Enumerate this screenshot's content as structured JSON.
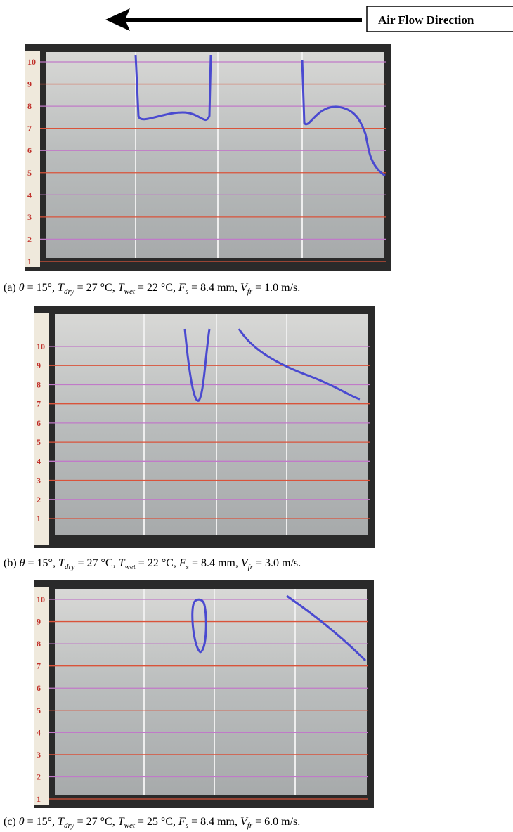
{
  "header": {
    "label": "Air Flow Direction"
  },
  "panels": [
    {
      "scale": [
        1,
        2,
        3,
        4,
        5,
        6,
        7,
        8,
        9,
        10
      ],
      "caption": [
        "(a) ",
        "θ",
        " = 15°, ",
        "T",
        "dry",
        " = 27 °C, ",
        "T",
        "wet",
        " = 22 °C, ",
        "F",
        "s",
        " = 8.4 mm, ",
        "V",
        "fr",
        " = 1.0 m/s."
      ]
    },
    {
      "scale": [
        1,
        2,
        3,
        4,
        5,
        6,
        7,
        8,
        9,
        10
      ],
      "caption": [
        "(b) ",
        "θ",
        " = 15°, ",
        "T",
        "dry",
        " = 27 °C, ",
        "T",
        "wet",
        " = 22 °C, ",
        "F",
        "s",
        " = 8.4 mm, ",
        "V",
        "fr",
        " = 3.0 m/s."
      ]
    },
    {
      "scale": [
        1,
        2,
        3,
        4,
        5,
        6,
        7,
        8,
        9,
        10
      ],
      "caption": [
        "(c) ",
        "θ",
        " = 15°, ",
        "T",
        "dry",
        " = 27 °C, ",
        "T",
        "wet",
        " = 25 °C, ",
        "F",
        "s",
        " = 8.4 mm, ",
        "V",
        "fr",
        " = 6.0 m/s."
      ]
    }
  ]
}
